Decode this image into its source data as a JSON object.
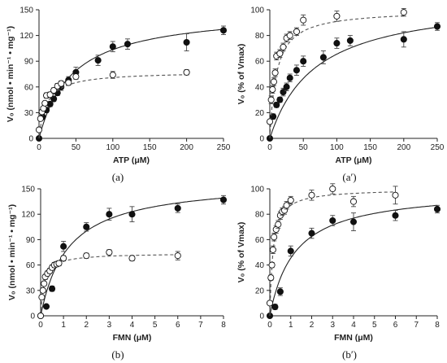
{
  "figure": {
    "filled_marker": "#111111",
    "open_marker": "#ffffff",
    "fit_solid": "#222222",
    "fit_dashed": "#555555"
  },
  "chart_data": [
    {
      "type": "scatter",
      "panel_label": "(a)",
      "xlabel": "ATP (μM)",
      "ylabel": "V₀ (nmol • min⁻¹ • mg⁻¹)",
      "xlim": [
        0,
        250
      ],
      "ylim": [
        0,
        150
      ],
      "xticks": [
        0,
        50,
        100,
        150,
        200,
        250
      ],
      "yticks": [
        0,
        30,
        60,
        90,
        120,
        150
      ],
      "series": [
        {
          "marker": "filled",
          "fit": "solid",
          "fit_vmax": 150,
          "fit_km": 45,
          "x": [
            0,
            5,
            10,
            15,
            20,
            25,
            30,
            40,
            50,
            80,
            100,
            120,
            200,
            250
          ],
          "y": [
            0,
            25,
            33,
            40,
            46,
            53,
            60,
            68,
            77,
            91,
            107,
            110,
            112,
            126
          ],
          "err": [
            0,
            3,
            3,
            3,
            3,
            3,
            4,
            4,
            6,
            6,
            6,
            6,
            10,
            5
          ]
        },
        {
          "marker": "open",
          "fit": "dashed",
          "fit_vmax": 78,
          "fit_km": 10,
          "x": [
            0,
            2,
            4,
            6,
            8,
            10,
            15,
            20,
            25,
            30,
            40,
            50,
            100,
            200
          ],
          "y": [
            10,
            23,
            31,
            35,
            41,
            50,
            51,
            56,
            61,
            64,
            65,
            72,
            74,
            77
          ],
          "err": [
            0,
            2,
            2,
            2,
            2,
            3,
            3,
            3,
            3,
            3,
            3,
            3,
            4,
            3
          ]
        }
      ]
    },
    {
      "type": "scatter",
      "panel_label": "(a′)",
      "xlabel": "ATP (μM)",
      "ylabel": "V₀ (% of Vmax)",
      "xlim": [
        0,
        250
      ],
      "ylim": [
        0,
        100
      ],
      "xticks": [
        0,
        50,
        100,
        150,
        200,
        250
      ],
      "yticks": [
        0,
        20,
        40,
        60,
        80,
        100
      ],
      "series": [
        {
          "marker": "filled",
          "fit": "solid",
          "fit_vmax": 110,
          "fit_km": 68,
          "x": [
            0,
            5,
            10,
            15,
            20,
            25,
            30,
            40,
            50,
            80,
            100,
            120,
            200,
            250
          ],
          "y": [
            0,
            17,
            26,
            30,
            36,
            40,
            47,
            53,
            60,
            63,
            74,
            76,
            77,
            87
          ],
          "err": [
            0,
            2,
            2,
            2,
            3,
            3,
            3,
            4,
            4,
            5,
            4,
            4,
            6,
            3
          ]
        },
        {
          "marker": "open",
          "fit": "dashed",
          "fit_vmax": 100,
          "fit_km": 10,
          "x": [
            0,
            2,
            4,
            6,
            8,
            10,
            15,
            20,
            25,
            30,
            40,
            50,
            100,
            200
          ],
          "y": [
            13,
            30,
            38,
            44,
            51,
            64,
            66,
            71,
            78,
            80,
            83,
            92,
            95,
            98
          ],
          "err": [
            0,
            3,
            3,
            3,
            3,
            3,
            3,
            3,
            3,
            3,
            3,
            4,
            4,
            3
          ]
        }
      ]
    },
    {
      "type": "scatter",
      "panel_label": "(b)",
      "xlabel": "FMN (μM)",
      "ylabel": "V₀ (nmol • min⁻¹ • mg⁻¹)",
      "xlim": [
        0,
        8
      ],
      "ylim": [
        0,
        150
      ],
      "xticks": [
        0,
        1,
        2,
        3,
        4,
        5,
        6,
        7,
        8
      ],
      "yticks": [
        0,
        30,
        60,
        90,
        120,
        150
      ],
      "series": [
        {
          "marker": "filled",
          "fit": "solid",
          "fit_vmax": 160,
          "fit_km": 1.2,
          "x": [
            0,
            0.25,
            0.5,
            1,
            2,
            3,
            4,
            6,
            8
          ],
          "y": [
            0,
            11,
            32,
            82,
            105,
            120,
            120,
            127,
            137
          ],
          "err": [
            0,
            2,
            3,
            6,
            5,
            7,
            9,
            5,
            5
          ]
        },
        {
          "marker": "open",
          "fit": "dashed",
          "fit_vmax": 74,
          "fit_km": 0.15,
          "x": [
            0,
            0.05,
            0.1,
            0.15,
            0.2,
            0.3,
            0.4,
            0.5,
            0.6,
            0.7,
            0.8,
            1,
            2,
            3,
            4,
            6
          ],
          "y": [
            0,
            22,
            30,
            38,
            46,
            50,
            53,
            57,
            60,
            61,
            62,
            68,
            71,
            75,
            68,
            71
          ],
          "err": [
            0,
            2,
            2,
            2,
            3,
            3,
            3,
            3,
            3,
            3,
            3,
            3,
            3,
            3,
            3,
            5
          ]
        }
      ]
    },
    {
      "type": "scatter",
      "panel_label": "(b′)",
      "xlabel": "FMN (μM)",
      "ylabel": "V₀ (% of Vmax)",
      "xlim": [
        0,
        8
      ],
      "ylim": [
        0,
        100
      ],
      "xticks": [
        0,
        1,
        2,
        3,
        4,
        5,
        6,
        7,
        8
      ],
      "yticks": [
        0,
        20,
        40,
        60,
        80,
        100
      ],
      "series": [
        {
          "marker": "filled",
          "fit": "solid",
          "fit_vmax": 100,
          "fit_km": 1.2,
          "x": [
            0,
            0.25,
            0.5,
            1,
            2,
            3,
            4,
            6,
            8
          ],
          "y": [
            0,
            7,
            19,
            51,
            65,
            75,
            74,
            79,
            84
          ],
          "err": [
            0,
            2,
            3,
            4,
            4,
            4,
            7,
            4,
            3
          ]
        },
        {
          "marker": "open",
          "fit": "dashed",
          "fit_vmax": 100,
          "fit_km": 0.15,
          "x": [
            0,
            0.05,
            0.1,
            0.15,
            0.2,
            0.3,
            0.4,
            0.5,
            0.6,
            0.7,
            0.8,
            1,
            2,
            3,
            4,
            6
          ],
          "y": [
            10,
            30,
            40,
            52,
            62,
            68,
            72,
            79,
            82,
            83,
            87,
            91,
            95,
            100,
            90,
            95
          ],
          "err": [
            0,
            2,
            2,
            3,
            3,
            3,
            3,
            3,
            3,
            3,
            3,
            3,
            4,
            4,
            4,
            7
          ]
        }
      ]
    }
  ]
}
